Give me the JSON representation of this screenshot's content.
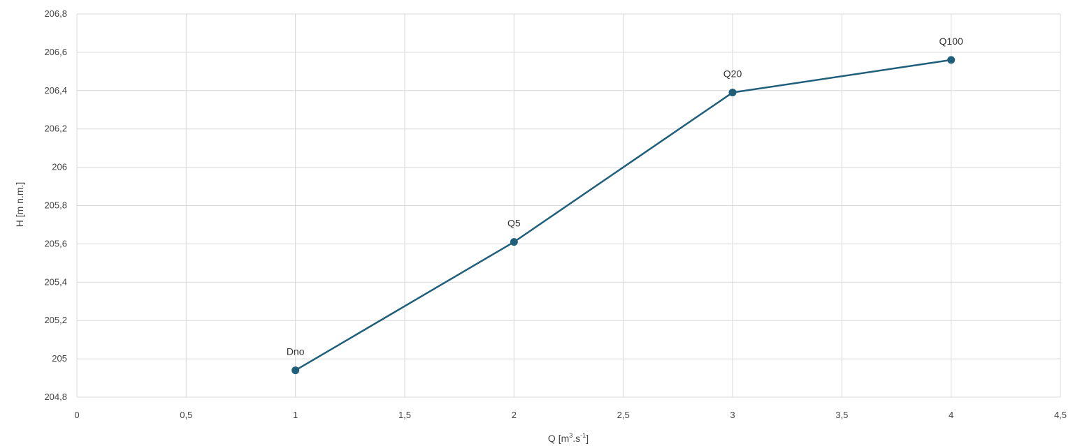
{
  "chart_data": {
    "type": "line",
    "title": "",
    "xlabel_base": "Q [m",
    "xlabel_sup1": "3",
    "xlabel_mid": ".s",
    "xlabel_sup2": "-1",
    "xlabel_end": "]",
    "ylabel": "H [m n.m.]",
    "xlim": [
      0,
      4.5
    ],
    "ylim": [
      204.8,
      206.8
    ],
    "x_ticks": [
      0,
      0.5,
      1,
      1.5,
      2,
      2.5,
      3,
      3.5,
      4,
      4.5
    ],
    "x_tick_labels": [
      "0",
      "0,5",
      "1",
      "1,5",
      "2",
      "2,5",
      "3",
      "3,5",
      "4",
      "4,5"
    ],
    "y_ticks": [
      204.8,
      205,
      205.2,
      205.4,
      205.6,
      205.8,
      206,
      206.2,
      206.4,
      206.6,
      206.8
    ],
    "y_tick_labels": [
      "204,8",
      "205",
      "205,2",
      "205,4",
      "205,6",
      "205,8",
      "206",
      "206,2",
      "206,4",
      "206,6",
      "206,8"
    ],
    "grid": true,
    "series": [
      {
        "color": "#1f5f7a",
        "points": [
          {
            "x": 1,
            "y": 204.94,
            "label": "Dno"
          },
          {
            "x": 2,
            "y": 205.61,
            "label": "Q5"
          },
          {
            "x": 3,
            "y": 206.39,
            "label": "Q20"
          },
          {
            "x": 4,
            "y": 206.56,
            "label": "Q100"
          }
        ]
      }
    ]
  }
}
